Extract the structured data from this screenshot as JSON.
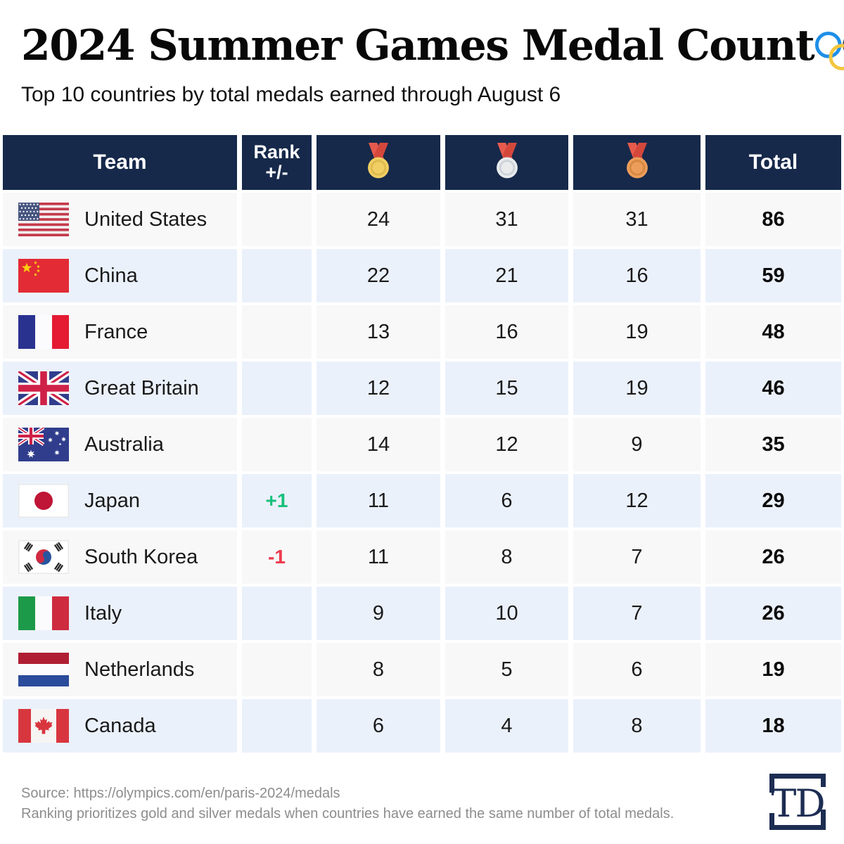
{
  "page": {
    "title": "2024 Summer Games Medal Count",
    "subtitle": "Top 10 countries by total medals earned through August 6",
    "source_line": "Source: https://olympics.com/en/paris-2024/medals",
    "note_line": "Ranking prioritizes gold and silver medals when countries have earned the same number of total medals.",
    "brand": "TD"
  },
  "colors": {
    "header_bg": "#16294A",
    "row_odd": "#F8F8F9",
    "row_even": "#EBF1FB",
    "rank_up": "#17C07C",
    "rank_down": "#EE3A4C",
    "medal_ribbon_left": "#E65A4D",
    "medal_ribbon_right": "#D4483C",
    "gold": "#F1CE63",
    "gold_ring": "#DDB94E",
    "silver": "#E9EBED",
    "silver_ring": "#CDD3D8",
    "bronze": "#EC9D5B",
    "bronze_ring": "#D6883F",
    "olympic_rings": [
      "#1E8FE8",
      "#323B47",
      "#EE4141",
      "#F3C63E",
      "#2E9E51"
    ],
    "logo_navy": "#1D2D52"
  },
  "chart_data": {
    "type": "table",
    "title": "2024 Summer Games Medal Count",
    "subtitle": "Top 10 countries by total medals earned through August 6",
    "columns": [
      "Team",
      "Rank +/-",
      "Gold",
      "Silver",
      "Bronze",
      "Total"
    ],
    "medal_column_icons": [
      "gold-medal-icon",
      "silver-medal-icon",
      "bronze-medal-icon"
    ],
    "rows": [
      {
        "flag": "us",
        "team": "United States",
        "rank_change": "",
        "gold": 24,
        "silver": 31,
        "bronze": 31,
        "total": 86
      },
      {
        "flag": "cn",
        "team": "China",
        "rank_change": "",
        "gold": 22,
        "silver": 21,
        "bronze": 16,
        "total": 59
      },
      {
        "flag": "fr",
        "team": "France",
        "rank_change": "",
        "gold": 13,
        "silver": 16,
        "bronze": 19,
        "total": 48
      },
      {
        "flag": "gb",
        "team": "Great Britain",
        "rank_change": "",
        "gold": 12,
        "silver": 15,
        "bronze": 19,
        "total": 46
      },
      {
        "flag": "au",
        "team": "Australia",
        "rank_change": "",
        "gold": 14,
        "silver": 12,
        "bronze": 9,
        "total": 35
      },
      {
        "flag": "jp",
        "team": "Japan",
        "rank_change": "+1",
        "gold": 11,
        "silver": 6,
        "bronze": 12,
        "total": 29
      },
      {
        "flag": "kr",
        "team": "South Korea",
        "rank_change": "-1",
        "gold": 11,
        "silver": 8,
        "bronze": 7,
        "total": 26
      },
      {
        "flag": "it",
        "team": "Italy",
        "rank_change": "",
        "gold": 9,
        "silver": 10,
        "bronze": 7,
        "total": 26
      },
      {
        "flag": "nl",
        "team": "Netherlands",
        "rank_change": "",
        "gold": 8,
        "silver": 5,
        "bronze": 6,
        "total": 19
      },
      {
        "flag": "ca",
        "team": "Canada",
        "rank_change": "",
        "gold": 6,
        "silver": 4,
        "bronze": 8,
        "total": 18
      }
    ]
  }
}
